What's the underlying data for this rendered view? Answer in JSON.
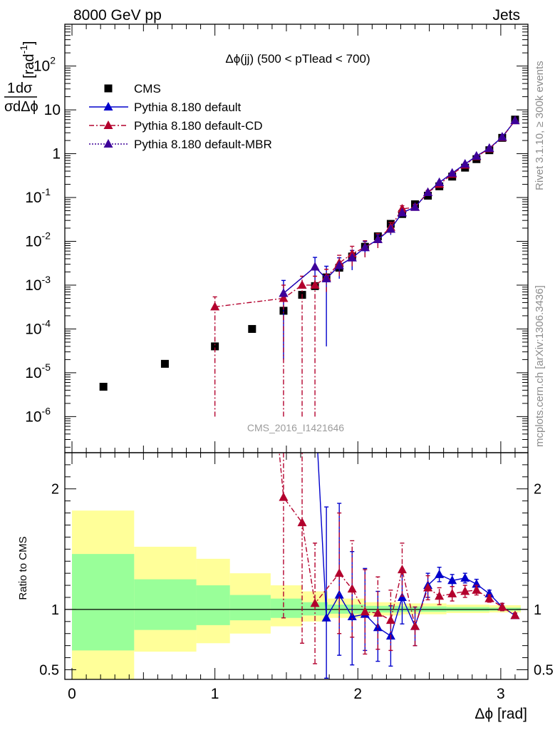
{
  "header": {
    "left_label": "8000 GeV pp",
    "right_label": "Jets"
  },
  "side_labels": {
    "rivet": "Rivet 3.1.10, ≥ 300k events",
    "ref": "mcplots.cern.ch [arXiv:1306.3436]"
  },
  "watermark": "CMS_2016_I1421646",
  "chart_data": [
    {
      "type": "scatter",
      "panel": "main",
      "title": "Δϕ(jj) (500 < pTlead <  700)",
      "ylabel": "1/σ dσ/dΔϕ [rad⁻¹]",
      "ylabel_parts": {
        "frac_top": "1",
        "frac_top2": "dσ",
        "frac_bottom": "σ",
        "frac_bottom2": "dΔϕ",
        "unit": "[rad",
        "unit_exp": "-1",
        "unit_close": "]"
      },
      "yscale": "log",
      "ylim": [
        1.5e-07,
        900
      ],
      "xlim": [
        -0.05,
        3.19
      ],
      "y_ticks": [
        {
          "mantissa": "10",
          "exp": "-6"
        },
        {
          "mantissa": "10",
          "exp": "-5"
        },
        {
          "mantissa": "10",
          "exp": "-4"
        },
        {
          "mantissa": "10",
          "exp": "-3"
        },
        {
          "mantissa": "10",
          "exp": "-2"
        },
        {
          "mantissa": "10",
          "exp": "-1"
        },
        {
          "mantissa": "1",
          "exp": ""
        },
        {
          "mantissa": "10",
          "exp": ""
        },
        {
          "mantissa": "10",
          "exp": "2"
        }
      ],
      "legend": {
        "position": "top-left",
        "entries": [
          "CMS",
          "Pythia 8.180 default",
          "Pythia 8.180 default-CD",
          "Pythia 8.180 default-MBR"
        ]
      },
      "series": [
        {
          "name": "CMS",
          "style": "black-square",
          "x": [
            0.22,
            0.65,
            1.0,
            1.26,
            1.48,
            1.61,
            1.7,
            1.78,
            1.87,
            1.96,
            2.05,
            2.14,
            2.23,
            2.31,
            2.4,
            2.49,
            2.57,
            2.66,
            2.75,
            2.83,
            2.92,
            3.01,
            3.1
          ],
          "y": [
            4.8e-06,
            1.6e-05,
            4e-05,
            0.0001,
            0.00026,
            0.0006,
            0.00095,
            0.0015,
            0.0025,
            0.0045,
            0.0075,
            0.013,
            0.025,
            0.042,
            0.07,
            0.11,
            0.18,
            0.3,
            0.48,
            0.75,
            1.2,
            2.3,
            6.0
          ]
        },
        {
          "name": "Pythia 8.180 default",
          "style": "blue-solid",
          "x": [
            1.48,
            1.7,
            1.78,
            1.87,
            1.96,
            2.05,
            2.14,
            2.23,
            2.31,
            2.4,
            2.49,
            2.57,
            2.66,
            2.75,
            2.83,
            2.92,
            3.01,
            3.1
          ],
          "y": [
            0.00065,
            0.0026,
            0.0014,
            0.0028,
            0.0042,
            0.0072,
            0.011,
            0.019,
            0.045,
            0.06,
            0.13,
            0.22,
            0.36,
            0.58,
            0.88,
            1.33,
            2.4,
            5.7
          ],
          "err_lo": [
            0.00063,
            0.0017,
            0.00136,
            0.0014,
            0.002,
            0.0027,
            0.003,
            0.005,
            0.008,
            0.006,
            0.01,
            0.015,
            0.02,
            0.03,
            0.04,
            0.05,
            0.07,
            0.12
          ],
          "err_hi": [
            0.00063,
            0.0017,
            0.0013,
            0.0014,
            0.002,
            0.0027,
            0.003,
            0.005,
            0.008,
            0.006,
            0.01,
            0.015,
            0.02,
            0.03,
            0.04,
            0.05,
            0.07,
            0.12
          ]
        },
        {
          "name": "Pythia 8.180 default-CD",
          "style": "red-dashdot",
          "x": [
            1.0,
            1.48,
            1.61,
            1.7,
            1.78,
            1.87,
            1.96,
            2.05,
            2.14,
            2.23,
            2.31,
            2.4,
            2.49,
            2.57,
            2.66,
            2.75,
            2.83,
            2.92,
            3.01,
            3.1
          ],
          "y": [
            0.00032,
            0.0005,
            0.001,
            0.001,
            0.0015,
            0.0032,
            0.0052,
            0.0073,
            0.011,
            0.021,
            0.055,
            0.06,
            0.13,
            0.2,
            0.34,
            0.55,
            0.86,
            1.3,
            2.35,
            5.7
          ],
          "err_lo": [
            0.000319,
            0.000499,
            0.000999,
            0.000999,
            0.0008,
            0.0016,
            0.0025,
            0.003,
            0.004,
            0.006,
            0.01,
            0.01,
            0.015,
            0.02,
            0.03,
            0.04,
            0.05,
            0.06,
            0.08,
            0.12
          ],
          "err_hi": [
            0.00022,
            0.0005,
            0.0006,
            0.0006,
            0.0008,
            0.0016,
            0.0025,
            0.003,
            0.004,
            0.006,
            0.01,
            0.01,
            0.015,
            0.02,
            0.03,
            0.04,
            0.05,
            0.06,
            0.08,
            0.12
          ]
        },
        {
          "name": "Pythia 8.180 default-MBR",
          "style": "purple-dotted",
          "x": [
            1.48,
            1.7,
            1.78,
            1.87,
            1.96,
            2.05,
            2.14,
            2.23,
            2.31,
            2.4,
            2.49,
            2.57,
            2.66,
            2.75,
            2.83,
            2.92,
            3.01,
            3.1
          ],
          "y": [
            0.00065,
            0.0026,
            0.0014,
            0.0028,
            0.0042,
            0.0072,
            0.011,
            0.019,
            0.045,
            0.06,
            0.13,
            0.22,
            0.36,
            0.58,
            0.88,
            1.33,
            2.4,
            5.7
          ]
        }
      ]
    },
    {
      "type": "scatter",
      "panel": "ratio",
      "ylabel": "Ratio to CMS",
      "xlabel": "Δϕ [rad]",
      "ylim": [
        0.42,
        2.3
      ],
      "xlim": [
        -0.05,
        3.19
      ],
      "y_ticks": [
        "0.5",
        "1",
        "2"
      ],
      "x_ticks": [
        "0",
        "1",
        "2",
        "3"
      ],
      "bands": {
        "edges": [
          0.0,
          0.435,
          0.87,
          1.105,
          1.39,
          1.61,
          1.79,
          2.05,
          2.3,
          2.62,
          2.92,
          3.14
        ],
        "yellow_lo": [
          0.35,
          0.65,
          0.72,
          0.8,
          0.86,
          0.9,
          0.93,
          0.95,
          0.96,
          0.97,
          0.975
        ],
        "yellow_hi": [
          1.82,
          1.52,
          1.42,
          1.3,
          1.2,
          1.15,
          1.09,
          1.06,
          1.05,
          1.04,
          1.035
        ],
        "green_lo": [
          0.66,
          0.83,
          0.87,
          0.91,
          0.93,
          0.95,
          0.965,
          0.975,
          0.98,
          0.985,
          0.99
        ],
        "green_hi": [
          1.46,
          1.25,
          1.2,
          1.12,
          1.09,
          1.06,
          1.04,
          1.03,
          1.025,
          1.02,
          1.015
        ]
      },
      "series": [
        {
          "name": "Pythia 8.180 default",
          "style": "blue-solid",
          "x": [
            1.78,
            1.87,
            1.96,
            2.05,
            2.14,
            2.23,
            2.31,
            2.4,
            2.49,
            2.57,
            2.66,
            2.75,
            2.83,
            2.92,
            3.01,
            3.1
          ],
          "y": [
            0.93,
            1.12,
            0.94,
            0.96,
            0.85,
            0.78,
            1.1,
            0.86,
            1.2,
            1.29,
            1.24,
            1.26,
            1.21,
            1.13,
            1.02,
            0.95
          ],
          "err_lo": [
            0.5,
            0.5,
            0.4,
            0.3,
            0.28,
            0.25,
            0.22,
            0.16,
            0.1,
            0.06,
            0.05,
            0.04,
            0.04,
            0.03,
            0.03,
            0.02
          ],
          "err_hi": [
            0.92,
            0.76,
            0.54,
            0.38,
            0.3,
            0.25,
            0.22,
            0.16,
            0.1,
            0.06,
            0.05,
            0.04,
            0.04,
            0.03,
            0.03,
            0.02
          ],
          "offscale_start": {
            "x": 1.7,
            "y": 2.74
          }
        },
        {
          "name": "Pythia 8.180 default-CD",
          "style": "red-dashdot",
          "x": [
            1.48,
            1.61,
            1.7,
            1.87,
            1.96,
            2.05,
            2.14,
            2.23,
            2.31,
            2.4,
            2.49,
            2.57,
            2.66,
            2.75,
            2.83,
            2.92,
            3.01,
            3.1
          ],
          "y": [
            1.93,
            1.72,
            1.05,
            1.3,
            1.17,
            0.98,
            0.97,
            0.91,
            1.33,
            0.86,
            1.18,
            1.11,
            1.13,
            1.15,
            1.16,
            1.09,
            1.02,
            0.95
          ],
          "err_lo": [
            1.0,
            1.0,
            0.5,
            0.5,
            0.4,
            0.35,
            0.3,
            0.25,
            0.22,
            0.16,
            0.1,
            0.07,
            0.06,
            0.05,
            0.04,
            0.03,
            0.03,
            0.02
          ],
          "err_hi": [
            1.0,
            1.0,
            0.5,
            0.5,
            0.4,
            0.35,
            0.3,
            0.25,
            0.22,
            0.16,
            0.1,
            0.07,
            0.06,
            0.05,
            0.04,
            0.03,
            0.03,
            0.02
          ],
          "offscale_start": {
            "x": 1.0,
            "y": 8.0
          }
        }
      ]
    }
  ]
}
